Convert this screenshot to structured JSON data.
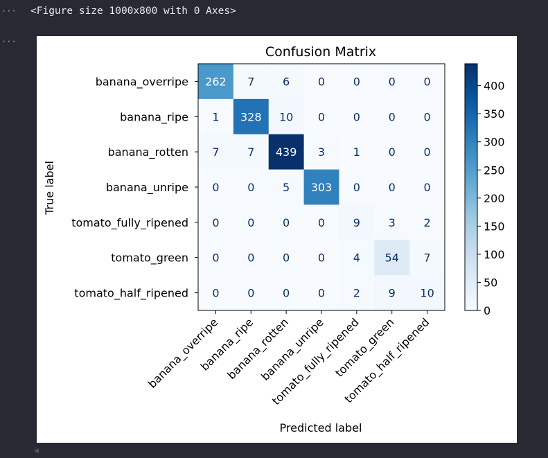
{
  "cell": {
    "prompt_marker": "···",
    "output_marker": "···",
    "output_text": "<Figure size 1000x800 with 0 Axes>"
  },
  "chart_data": {
    "type": "heatmap",
    "title": "Confusion Matrix",
    "xlabel": "Predicted label",
    "ylabel": "True label",
    "labels": [
      "banana_overripe",
      "banana_ripe",
      "banana_rotten",
      "banana_unripe",
      "tomato_fully_ripened",
      "tomato_green",
      "tomato_half_ripened"
    ],
    "matrix": [
      [
        262,
        7,
        6,
        0,
        0,
        0,
        0
      ],
      [
        1,
        328,
        10,
        0,
        0,
        0,
        0
      ],
      [
        7,
        7,
        439,
        3,
        1,
        0,
        0
      ],
      [
        0,
        0,
        5,
        303,
        0,
        0,
        0
      ],
      [
        0,
        0,
        0,
        0,
        9,
        3,
        2
      ],
      [
        0,
        0,
        0,
        0,
        4,
        54,
        7
      ],
      [
        0,
        0,
        0,
        0,
        2,
        9,
        10
      ]
    ],
    "colormap": "Blues",
    "colorbar": {
      "range": [
        0,
        439
      ],
      "ticks": [
        0,
        50,
        100,
        150,
        200,
        250,
        300,
        350,
        400
      ]
    },
    "grid": false
  }
}
